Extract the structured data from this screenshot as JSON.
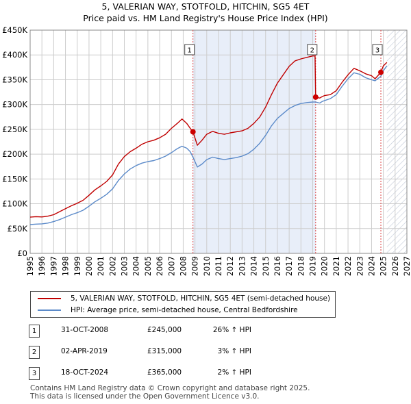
{
  "chart_data": {
    "type": "line",
    "title_line1": "5, VALERIAN WAY, STOTFOLD, HITCHIN, SG5 4ET",
    "title_line2": "Price paid vs. HM Land Registry's House Price Index (HPI)",
    "xlim": [
      1995,
      2027
    ],
    "ylim": [
      0,
      450000
    ],
    "y_ticks": [
      0,
      50000,
      100000,
      150000,
      200000,
      250000,
      300000,
      350000,
      400000,
      450000
    ],
    "y_tick_labels": [
      "£0",
      "£50K",
      "£100K",
      "£150K",
      "£200K",
      "£250K",
      "£300K",
      "£350K",
      "£400K",
      "£450K"
    ],
    "x_ticks": [
      1995,
      1996,
      1997,
      1998,
      1999,
      2000,
      2001,
      2002,
      2003,
      2004,
      2005,
      2006,
      2007,
      2008,
      2009,
      2010,
      2011,
      2012,
      2013,
      2014,
      2015,
      2016,
      2017,
      2018,
      2019,
      2020,
      2021,
      2022,
      2023,
      2024,
      2025,
      2026,
      2027
    ],
    "shaded_range": [
      2008.83,
      2019.25
    ],
    "hatched_from": 2025.3,
    "colors": {
      "property": "#c00000",
      "hpi": "#5b8ac9",
      "shade": "#e8eef9",
      "marker": "#cc0000",
      "vline": "#dd4444",
      "grid": "#cccccc"
    },
    "series": [
      {
        "name": "5, VALERIAN WAY, STOTFOLD, HITCHIN, SG5 4ET (semi-detached house)",
        "color": "#c00000",
        "points": [
          [
            1995.0,
            73000
          ],
          [
            1995.5,
            74000
          ],
          [
            1996.0,
            73500
          ],
          [
            1996.5,
            75000
          ],
          [
            1997.0,
            78000
          ],
          [
            1997.5,
            84000
          ],
          [
            1998.0,
            90000
          ],
          [
            1998.5,
            96000
          ],
          [
            1999.0,
            101000
          ],
          [
            1999.5,
            107000
          ],
          [
            2000.0,
            117000
          ],
          [
            2000.5,
            128000
          ],
          [
            2001.0,
            136000
          ],
          [
            2001.5,
            145000
          ],
          [
            2002.0,
            158000
          ],
          [
            2002.5,
            180000
          ],
          [
            2003.0,
            195000
          ],
          [
            2003.5,
            205000
          ],
          [
            2004.0,
            212000
          ],
          [
            2004.5,
            220000
          ],
          [
            2005.0,
            225000
          ],
          [
            2005.5,
            228000
          ],
          [
            2006.0,
            233000
          ],
          [
            2006.5,
            240000
          ],
          [
            2007.0,
            252000
          ],
          [
            2007.5,
            262000
          ],
          [
            2007.9,
            271000
          ],
          [
            2008.3,
            262000
          ],
          [
            2008.6,
            252000
          ],
          [
            2008.83,
            245000
          ],
          [
            2009.2,
            218000
          ],
          [
            2009.6,
            228000
          ],
          [
            2010.0,
            240000
          ],
          [
            2010.5,
            246000
          ],
          [
            2011.0,
            242000
          ],
          [
            2011.5,
            240000
          ],
          [
            2012.0,
            243000
          ],
          [
            2012.5,
            245000
          ],
          [
            2013.0,
            247000
          ],
          [
            2013.5,
            252000
          ],
          [
            2014.0,
            262000
          ],
          [
            2014.5,
            275000
          ],
          [
            2015.0,
            295000
          ],
          [
            2015.5,
            320000
          ],
          [
            2016.0,
            343000
          ],
          [
            2016.5,
            360000
          ],
          [
            2017.0,
            377000
          ],
          [
            2017.5,
            388000
          ],
          [
            2018.0,
            392000
          ],
          [
            2018.5,
            395000
          ],
          [
            2019.0,
            398000
          ],
          [
            2019.2,
            398000
          ],
          [
            2019.25,
            315000
          ],
          [
            2019.6,
            313000
          ],
          [
            2019.8,
            316000
          ],
          [
            2020.0,
            318000
          ],
          [
            2020.5,
            320000
          ],
          [
            2021.0,
            328000
          ],
          [
            2021.5,
            345000
          ],
          [
            2022.0,
            360000
          ],
          [
            2022.5,
            373000
          ],
          [
            2023.0,
            368000
          ],
          [
            2023.5,
            362000
          ],
          [
            2024.0,
            358000
          ],
          [
            2024.3,
            352000
          ],
          [
            2024.79,
            365000
          ],
          [
            2025.0,
            378000
          ],
          [
            2025.3,
            385000
          ]
        ]
      },
      {
        "name": "HPI: Average price, semi-detached house, Central Bedfordshire",
        "color": "#5b8ac9",
        "points": [
          [
            1995.0,
            58000
          ],
          [
            1995.5,
            59000
          ],
          [
            1996.0,
            59500
          ],
          [
            1996.5,
            61000
          ],
          [
            1997.0,
            64000
          ],
          [
            1997.5,
            68000
          ],
          [
            1998.0,
            73000
          ],
          [
            1998.5,
            78000
          ],
          [
            1999.0,
            82000
          ],
          [
            1999.5,
            87000
          ],
          [
            2000.0,
            95000
          ],
          [
            2000.5,
            104000
          ],
          [
            2001.0,
            111000
          ],
          [
            2001.5,
            119000
          ],
          [
            2002.0,
            130000
          ],
          [
            2002.5,
            147000
          ],
          [
            2003.0,
            160000
          ],
          [
            2003.5,
            170000
          ],
          [
            2004.0,
            177000
          ],
          [
            2004.5,
            182000
          ],
          [
            2005.0,
            185000
          ],
          [
            2005.5,
            187000
          ],
          [
            2006.0,
            191000
          ],
          [
            2006.5,
            196000
          ],
          [
            2007.0,
            203000
          ],
          [
            2007.5,
            211000
          ],
          [
            2007.9,
            216000
          ],
          [
            2008.3,
            212000
          ],
          [
            2008.6,
            205000
          ],
          [
            2008.83,
            194000
          ],
          [
            2009.2,
            174000
          ],
          [
            2009.6,
            180000
          ],
          [
            2010.0,
            189000
          ],
          [
            2010.5,
            194000
          ],
          [
            2011.0,
            191000
          ],
          [
            2011.5,
            189000
          ],
          [
            2012.0,
            191000
          ],
          [
            2012.5,
            193000
          ],
          [
            2013.0,
            196000
          ],
          [
            2013.5,
            201000
          ],
          [
            2014.0,
            210000
          ],
          [
            2014.5,
            222000
          ],
          [
            2015.0,
            238000
          ],
          [
            2015.5,
            257000
          ],
          [
            2016.0,
            272000
          ],
          [
            2016.5,
            282000
          ],
          [
            2017.0,
            292000
          ],
          [
            2017.5,
            298000
          ],
          [
            2018.0,
            302000
          ],
          [
            2018.5,
            304000
          ],
          [
            2019.0,
            305000
          ],
          [
            2019.25,
            305000
          ],
          [
            2019.6,
            303000
          ],
          [
            2019.8,
            306000
          ],
          [
            2020.0,
            308000
          ],
          [
            2020.5,
            312000
          ],
          [
            2021.0,
            320000
          ],
          [
            2021.5,
            337000
          ],
          [
            2022.0,
            352000
          ],
          [
            2022.5,
            364000
          ],
          [
            2023.0,
            361000
          ],
          [
            2023.5,
            354000
          ],
          [
            2024.0,
            350000
          ],
          [
            2024.3,
            348000
          ],
          [
            2024.79,
            357000
          ],
          [
            2025.0,
            368000
          ],
          [
            2025.3,
            378000
          ]
        ]
      }
    ],
    "annotations": [
      {
        "label": "1",
        "x": 2008.83,
        "y": 245000,
        "box_y": 410000
      },
      {
        "label": "2",
        "x": 2019.25,
        "y": 315000,
        "box_y": 410000
      },
      {
        "label": "3",
        "x": 2024.79,
        "y": 365000,
        "box_y": 410000
      }
    ]
  },
  "legend": {
    "property_label": "5, VALERIAN WAY, STOTFOLD, HITCHIN, SG5 4ET (semi-detached house)",
    "hpi_label": "HPI: Average price, semi-detached house, Central Bedfordshire"
  },
  "sales": [
    {
      "num": "1",
      "date": "31-OCT-2008",
      "price": "£245,000",
      "hpi": "26% ↑ HPI"
    },
    {
      "num": "2",
      "date": "02-APR-2019",
      "price": "£315,000",
      "hpi": "3% ↑ HPI"
    },
    {
      "num": "3",
      "date": "18-OCT-2024",
      "price": "£365,000",
      "hpi": "2% ↑ HPI"
    }
  ],
  "footer": {
    "line1": "Contains HM Land Registry data © Crown copyright and database right 2025.",
    "line2": "This data is licensed under the Open Government Licence v3.0."
  }
}
